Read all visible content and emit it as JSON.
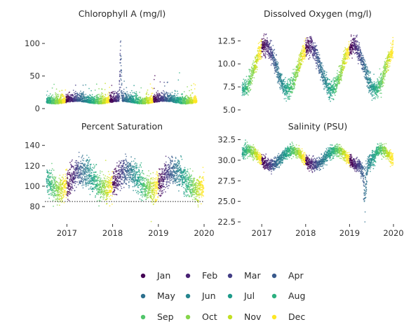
{
  "chart_data": [
    {
      "type": "scatter",
      "title": "Chlorophyll A (mg/l)",
      "xlim": [
        2016.55,
        2020.0
      ],
      "ylim": [
        -2,
        128
      ],
      "yticks": [
        0,
        50,
        100
      ],
      "ytick_labels": [
        "0",
        "50",
        "100"
      ],
      "xticks": [],
      "xtick_labels": [],
      "reference_line": null,
      "model": {
        "kind": "chl",
        "base": 9,
        "season_amp": 2,
        "noise": 6,
        "spikes": [
          {
            "x": 2018.25,
            "height": 110,
            "width": 0.035
          }
        ]
      },
      "series": [
        {
          "name": "Jan",
          "month": 1,
          "color": "#440154"
        },
        {
          "name": "Feb",
          "month": 2,
          "color": "#482173"
        },
        {
          "name": "Mar",
          "month": 3,
          "color": "#433E85"
        },
        {
          "name": "Apr",
          "month": 4,
          "color": "#38598C"
        },
        {
          "name": "May",
          "month": 5,
          "color": "#2D708E"
        },
        {
          "name": "Jun",
          "month": 6,
          "color": "#25858E"
        },
        {
          "name": "Jul",
          "month": 7,
          "color": "#1E9B8A"
        },
        {
          "name": "Aug",
          "month": 8,
          "color": "#2BB07F"
        },
        {
          "name": "Sep",
          "month": 9,
          "color": "#51C56A"
        },
        {
          "name": "Oct",
          "month": 10,
          "color": "#85D54A"
        },
        {
          "name": "Nov",
          "month": 11,
          "color": "#C2DF23"
        },
        {
          "name": "Dec",
          "month": 12,
          "color": "#FDE725"
        }
      ]
    },
    {
      "type": "scatter",
      "title": "Dissolved Oxygen (mg/l)",
      "xlim": [
        2016.55,
        2020.0
      ],
      "ylim": [
        5.0,
        14.2
      ],
      "yticks": [
        5.0,
        7.5,
        10.0,
        12.5
      ],
      "ytick_labels": [
        "5.0",
        "7.5",
        "10.0",
        "12.5"
      ],
      "xticks": [],
      "xtick_labels": [],
      "reference_line": null,
      "model": {
        "kind": "seasonal",
        "mean": 9.6,
        "amp": 2.4,
        "peak_month": 2,
        "noise": 0.9
      }
    },
    {
      "type": "scatter",
      "title": "Percent Saturation",
      "xlim": [
        2016.55,
        2020.0
      ],
      "ylim": [
        65,
        148
      ],
      "yticks": [
        80,
        100,
        120,
        140
      ],
      "ytick_labels": [
        "80",
        "100",
        "120",
        "140"
      ],
      "xticks": [
        2017,
        2018,
        2019,
        2020
      ],
      "xtick_labels": [
        "2017",
        "2018",
        "2019",
        "2020"
      ],
      "reference_line": {
        "y": 85,
        "style": "dotted"
      },
      "model": {
        "kind": "seasonal",
        "mean": 106,
        "amp": 9,
        "peak_month": 5,
        "noise": 12
      }
    },
    {
      "type": "scatter",
      "title": "Salinity (PSU)",
      "xlim": [
        2016.55,
        2020.0
      ],
      "ylim": [
        22.5,
        32.8
      ],
      "yticks": [
        22.5,
        25.0,
        27.5,
        30.0,
        32.5
      ],
      "ytick_labels": [
        "22.5",
        "25.0",
        "27.5",
        "30.0",
        "32.5"
      ],
      "xticks": [
        2017,
        2018,
        2019,
        2020
      ],
      "xtick_labels": [
        "2017",
        "2018",
        "2019",
        "2020"
      ],
      "reference_line": null,
      "model": {
        "kind": "salinity",
        "mean": 30.3,
        "amp": 0.9,
        "noise": 0.7,
        "dip": {
          "x": 2019.35,
          "depth": 6.5,
          "width": 0.06
        }
      }
    }
  ],
  "legend": {
    "items": [
      {
        "label": "Jan",
        "color": "#440154"
      },
      {
        "label": "Feb",
        "color": "#482173"
      },
      {
        "label": "Mar",
        "color": "#433E85"
      },
      {
        "label": "Apr",
        "color": "#38598C"
      },
      {
        "label": "May",
        "color": "#2D708E"
      },
      {
        "label": "Jun",
        "color": "#25858E"
      },
      {
        "label": "Jul",
        "color": "#1E9B8A"
      },
      {
        "label": "Aug",
        "color": "#2BB07F"
      },
      {
        "label": "Sep",
        "color": "#51C56A"
      },
      {
        "label": "Oct",
        "color": "#85D54A"
      },
      {
        "label": "Nov",
        "color": "#C2DF23"
      },
      {
        "label": "Dec",
        "color": "#FDE725"
      }
    ],
    "columns": 4,
    "placement": "bottom"
  }
}
